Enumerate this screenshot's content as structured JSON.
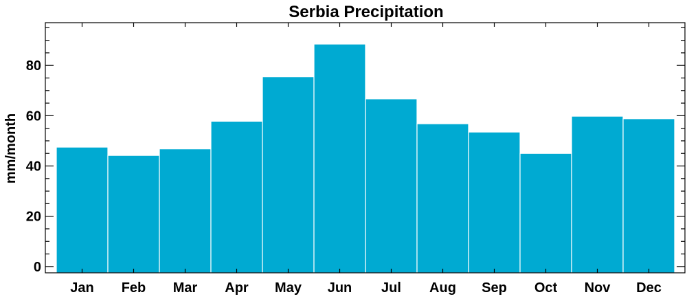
{
  "chart_data": {
    "type": "bar",
    "title": "Serbia Precipitation",
    "xlabel": "",
    "ylabel": "mm/month",
    "categories": [
      "Jan",
      "Feb",
      "Mar",
      "Apr",
      "May",
      "Jun",
      "Jul",
      "Aug",
      "Sep",
      "Oct",
      "Nov",
      "Dec"
    ],
    "values": [
      47.5,
      44.2,
      46.8,
      57.8,
      75.5,
      88.5,
      66.7,
      56.8,
      53.5,
      45.0,
      59.8,
      58.8
    ],
    "ylim": [
      -2.5,
      97
    ],
    "yticks": [
      0,
      20,
      40,
      60,
      80
    ],
    "ytick_labels": [
      "0",
      "20",
      "40",
      "60",
      "80"
    ],
    "grid": false,
    "legend": "none",
    "bar_color": "#00aad2",
    "bar_edge_color": "#ffffff"
  }
}
